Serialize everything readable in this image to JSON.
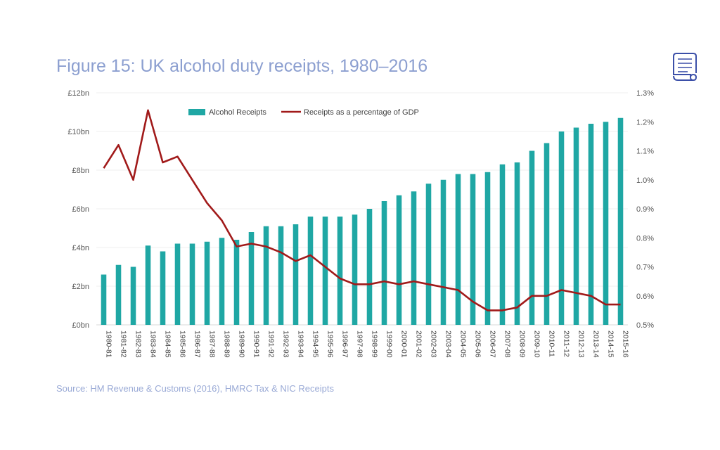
{
  "figure_title": "Figure 15: UK alcohol duty receipts, 1980–2016",
  "source_note": "Source: HM Revenue & Customs (2016), HMRC Tax & NIC Receipts",
  "icon": "document-scroll-icon",
  "colors": {
    "bars": "#1fa7a4",
    "line": "#a11a1a",
    "title": "#8c9fd0"
  },
  "chart_data": {
    "type": "bar",
    "title": "",
    "legend_position": "top-center",
    "grid": true,
    "categories": [
      "1980-81",
      "1981-82",
      "1982-83",
      "1983-84",
      "1984-85",
      "1985-86",
      "1986-87",
      "1987-88",
      "1988-89",
      "1989-90",
      "1990-91",
      "1991-92",
      "1992-93",
      "1993-94",
      "1994-95",
      "1995-96",
      "1996-97",
      "1997-98",
      "1998-99",
      "1999-00",
      "2000-01",
      "2001-02",
      "2002-03",
      "2003-04",
      "2004-05",
      "2005-06",
      "2006-07",
      "2007-08",
      "2008-09",
      "2009-10",
      "2010-11",
      "2011-12",
      "2012-13",
      "2013-14",
      "2014-15",
      "2015-16"
    ],
    "series": [
      {
        "name": "Alcohol Receipts",
        "type": "bar",
        "axis": "left",
        "unit": "£bn",
        "values": [
          2.6,
          3.1,
          3.0,
          4.1,
          3.8,
          4.2,
          4.2,
          4.3,
          4.5,
          4.4,
          4.8,
          5.1,
          5.1,
          5.2,
          5.6,
          5.6,
          5.6,
          5.7,
          6.0,
          6.4,
          6.7,
          6.9,
          7.3,
          7.5,
          7.8,
          7.8,
          7.9,
          8.3,
          8.4,
          9.0,
          9.4,
          10.0,
          10.2,
          10.4,
          10.5,
          10.7
        ]
      },
      {
        "name": "Receipts as a percentage of GDP",
        "type": "line",
        "axis": "right",
        "unit": "%",
        "values": [
          1.04,
          1.12,
          1.0,
          1.24,
          1.06,
          1.08,
          1.0,
          0.92,
          0.86,
          0.77,
          0.78,
          0.77,
          0.75,
          0.72,
          0.74,
          0.7,
          0.66,
          0.64,
          0.64,
          0.65,
          0.64,
          0.65,
          0.64,
          0.63,
          0.62,
          0.58,
          0.55,
          0.55,
          0.56,
          0.6,
          0.6,
          0.62,
          0.61,
          0.6,
          0.57,
          0.57
        ]
      }
    ],
    "y_left": {
      "ylim": [
        0,
        12
      ],
      "ticks": [
        0,
        2,
        4,
        6,
        8,
        10,
        12
      ],
      "tick_labels": [
        "£0bn",
        "£2bn",
        "£4bn",
        "£6bn",
        "£8bn",
        "£10bn",
        "£12bn"
      ]
    },
    "y_right": {
      "ylim": [
        0.5,
        1.3
      ],
      "ticks": [
        0.5,
        0.6,
        0.7,
        0.8,
        0.9,
        1.0,
        1.1,
        1.2,
        1.3
      ],
      "tick_labels": [
        "0.5%",
        "0.6%",
        "0.7%",
        "0.8%",
        "0.9%",
        "1.0%",
        "1.1%",
        "1.2%",
        "1.3%"
      ]
    }
  }
}
